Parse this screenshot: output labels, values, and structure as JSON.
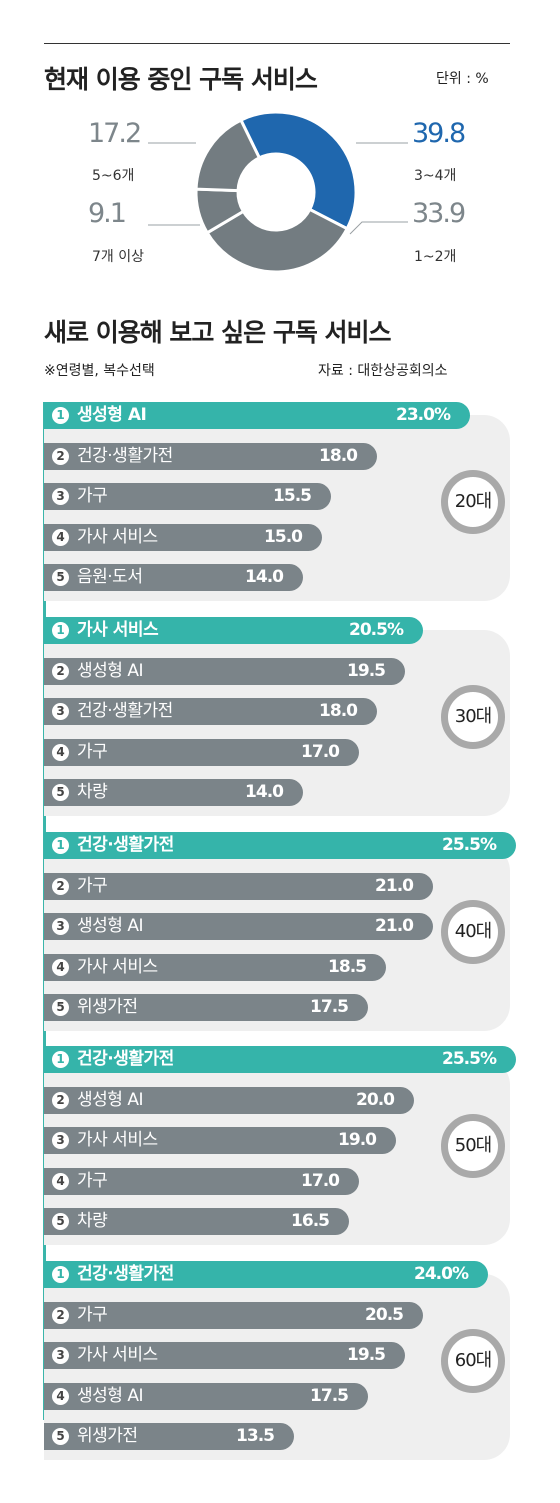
{
  "section1": {
    "title": "현재 이용 중인 구독 서비스",
    "unit": "단위 : %"
  },
  "section2": {
    "title": "새로 이용해 보고 싶은 구독 서비스",
    "note": "※연령별, 복수선택",
    "source": "자료 : 대한상공회의소"
  },
  "colors": {
    "teal": "#35b4aa",
    "gray": "#7b8489",
    "blue": "#1f67ae",
    "donut_gray": "#737c81"
  },
  "chart_data": [
    {
      "type": "pie",
      "title": "현재 이용 중인 구독 서비스",
      "unit": "%",
      "slices": [
        {
          "label": "3~4개",
          "value": 39.8,
          "display": "39.8",
          "color": "#1f67ae"
        },
        {
          "label": "1~2개",
          "value": 33.9,
          "display": "33.9",
          "color": "#737c81"
        },
        {
          "label": "7개 이상",
          "value": 9.1,
          "display": "9.1",
          "color": "#737c81"
        },
        {
          "label": "5~6개",
          "value": 17.2,
          "display": "17.2",
          "color": "#737c81"
        }
      ]
    },
    {
      "type": "bar",
      "title": "새로 이용해 보고 싶은 구독 서비스",
      "unit": "%",
      "groups": [
        {
          "age": "20대",
          "items": [
            {
              "rank": "1",
              "label": "생성형 AI",
              "value": 23.0,
              "display": "23.0%"
            },
            {
              "rank": "2",
              "label": "건강·생활가전",
              "value": 18.0,
              "display": "18.0"
            },
            {
              "rank": "3",
              "label": "가구",
              "value": 15.5,
              "display": "15.5"
            },
            {
              "rank": "4",
              "label": "가사 서비스",
              "value": 15.0,
              "display": "15.0"
            },
            {
              "rank": "5",
              "label": "음원·도서",
              "value": 14.0,
              "display": "14.0"
            }
          ]
        },
        {
          "age": "30대",
          "items": [
            {
              "rank": "1",
              "label": "가사 서비스",
              "value": 20.5,
              "display": "20.5%"
            },
            {
              "rank": "2",
              "label": "생성형 AI",
              "value": 19.5,
              "display": "19.5"
            },
            {
              "rank": "3",
              "label": "건강·생활가전",
              "value": 18.0,
              "display": "18.0"
            },
            {
              "rank": "4",
              "label": "가구",
              "value": 17.0,
              "display": "17.0"
            },
            {
              "rank": "5",
              "label": "차량",
              "value": 14.0,
              "display": "14.0"
            }
          ]
        },
        {
          "age": "40대",
          "items": [
            {
              "rank": "1",
              "label": "건강·생활가전",
              "value": 25.5,
              "display": "25.5%"
            },
            {
              "rank": "2",
              "label": "가구",
              "value": 21.0,
              "display": "21.0"
            },
            {
              "rank": "3",
              "label": "생성형 AI",
              "value": 21.0,
              "display": "21.0"
            },
            {
              "rank": "4",
              "label": "가사 서비스",
              "value": 18.5,
              "display": "18.5"
            },
            {
              "rank": "5",
              "label": "위생가전",
              "value": 17.5,
              "display": "17.5"
            }
          ]
        },
        {
          "age": "50대",
          "items": [
            {
              "rank": "1",
              "label": "건강·생활가전",
              "value": 25.5,
              "display": "25.5%"
            },
            {
              "rank": "2",
              "label": "생성형 AI",
              "value": 20.0,
              "display": "20.0"
            },
            {
              "rank": "3",
              "label": "가사 서비스",
              "value": 19.0,
              "display": "19.0"
            },
            {
              "rank": "4",
              "label": "가구",
              "value": 17.0,
              "display": "17.0"
            },
            {
              "rank": "5",
              "label": "차량",
              "value": 16.5,
              "display": "16.5"
            }
          ]
        },
        {
          "age": "60대",
          "items": [
            {
              "rank": "1",
              "label": "건강·생활가전",
              "value": 24.0,
              "display": "24.0%"
            },
            {
              "rank": "2",
              "label": "가구",
              "value": 20.5,
              "display": "20.5"
            },
            {
              "rank": "3",
              "label": "가사 서비스",
              "value": 19.5,
              "display": "19.5"
            },
            {
              "rank": "4",
              "label": "생성형 AI",
              "value": 17.5,
              "display": "17.5"
            },
            {
              "rank": "5",
              "label": "위생가전",
              "value": 13.5,
              "display": "13.5"
            }
          ]
        }
      ]
    }
  ]
}
